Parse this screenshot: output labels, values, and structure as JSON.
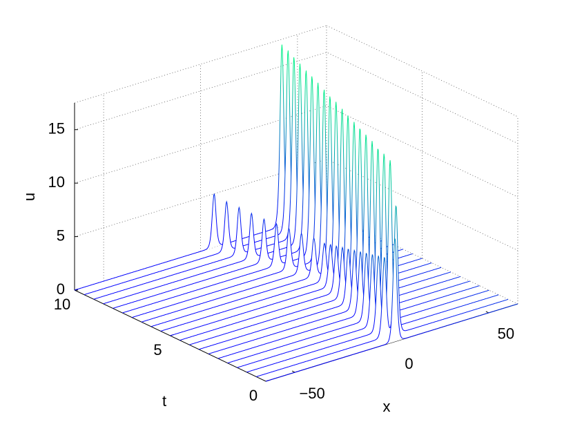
{
  "chart_data": {
    "type": "waterfall",
    "xlabel": "x",
    "ylabel": "t",
    "zlabel": "u",
    "xlim": [
      -65,
      65
    ],
    "ylim": [
      0,
      10
    ],
    "zlim": [
      0,
      17.5
    ],
    "xticks": [
      {
        "value": -50,
        "label": "−50"
      },
      0,
      50
    ],
    "yticks": [
      0,
      5,
      10
    ],
    "zticks": [
      0,
      5,
      10,
      15
    ],
    "grid": true,
    "colormap": [
      "#0000ff",
      "#00ff80"
    ],
    "curves": [
      {
        "t": 0,
        "peak_x": [
          1.6
        ],
        "peak_u": [
          9.7
        ]
      },
      {
        "t": 0.5,
        "peak_x": [
          7.1,
          1.1
        ],
        "peak_u": [
          12,
          7.5
        ]
      },
      {
        "t": 1,
        "peak_x": [
          9.0,
          3.0
        ],
        "peak_u": [
          15.7,
          7.1
        ]
      },
      {
        "t": 1.5,
        "peak_x": [
          10.8,
          4.8
        ],
        "peak_u": [
          15.8,
          6.7
        ]
      },
      {
        "t": 2,
        "peak_x": [
          12.6,
          6.6
        ],
        "peak_u": [
          15.8,
          6.3
        ]
      },
      {
        "t": 2.5,
        "peak_x": [
          14.5,
          8.5
        ],
        "peak_u": [
          15.9,
          5.9
        ]
      },
      {
        "t": 3,
        "peak_x": [
          16.3,
          10.3
        ],
        "peak_u": [
          16.0,
          5.5
        ]
      },
      {
        "t": 3.5,
        "peak_x": [
          18.1,
          12.1
        ],
        "peak_u": [
          16.1,
          5.1
        ]
      },
      {
        "t": 4,
        "peak_x": [
          20.0,
          14.0
        ],
        "peak_u": [
          16.1,
          4.7
        ]
      },
      {
        "t": 4.5,
        "peak_x": [
          21.8,
          15.8
        ],
        "peak_u": [
          16.2,
          4.3
        ]
      },
      {
        "t": 5,
        "peak_x": [
          23.7,
          17.7
        ],
        "peak_u": [
          16.3,
          3.9
        ]
      },
      {
        "t": 5.5,
        "peak_x": [
          25.5,
          19.5
        ],
        "peak_u": [
          16.4,
          3.5
        ]
      },
      {
        "t": 6,
        "peak_x": [
          27.3,
          19.0
        ],
        "peak_u": [
          16.4,
          3.6
        ]
      },
      {
        "t": 6.5,
        "peak_x": [
          29.2,
          17.5
        ],
        "peak_u": [
          16.5,
          3.7
        ]
      },
      {
        "t": 7,
        "peak_x": [
          31.0,
          16.0
        ],
        "peak_u": [
          16.6,
          3.8
        ]
      },
      {
        "t": 7.5,
        "peak_x": [
          32.8,
          14.5
        ],
        "peak_u": [
          16.7,
          3.9
        ]
      },
      {
        "t": 8,
        "peak_x": [
          34.7,
          13.0
        ],
        "peak_u": [
          16.7,
          4.0
        ]
      },
      {
        "t": 8.5,
        "peak_x": [
          36.5,
          11.5
        ],
        "peak_u": [
          16.8,
          4.2
        ]
      },
      {
        "t": 9,
        "peak_x": [
          38.3,
          10.0
        ],
        "peak_u": [
          16.9,
          4.4
        ]
      },
      {
        "t": 9.5,
        "peak_x": [
          40.2,
          8.5
        ],
        "peak_u": [
          17.0,
          4.6
        ]
      },
      {
        "t": 10,
        "peak_x": [
          42.0,
          7.0
        ],
        "peak_u": [
          17.0,
          5.0
        ]
      }
    ]
  }
}
